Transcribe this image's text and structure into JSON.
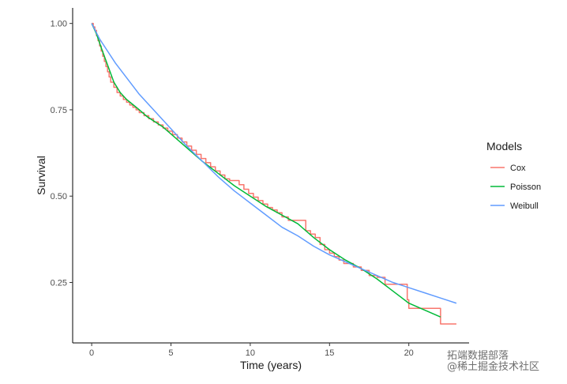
{
  "chart_data": {
    "type": "line",
    "xlabel": "Time (years)",
    "ylabel": "Survival",
    "xlim": [
      -1.2,
      23.8
    ],
    "ylim": [
      0.075,
      1.045
    ],
    "xticks": [
      0,
      5,
      10,
      15,
      20
    ],
    "yticks": [
      0.25,
      0.5,
      0.75,
      1.0
    ],
    "xtick_labels": [
      "0",
      "5",
      "10",
      "15",
      "20"
    ],
    "ytick_labels": [
      "0.25",
      "0.50",
      "0.75",
      "1.00"
    ],
    "grid": false,
    "legend": {
      "title": "Models",
      "position": "right"
    },
    "series": [
      {
        "name": "Cox",
        "color": "#F8766D",
        "step": true,
        "x": [
          0,
          0.1,
          0.2,
          0.3,
          0.4,
          0.5,
          0.6,
          0.7,
          0.8,
          0.9,
          1.0,
          1.1,
          1.2,
          1.4,
          1.6,
          1.8,
          2.0,
          2.2,
          2.4,
          2.6,
          2.8,
          3.0,
          3.3,
          3.6,
          3.9,
          4.2,
          4.5,
          4.8,
          5.1,
          5.4,
          5.7,
          6.0,
          6.3,
          6.6,
          6.9,
          7.2,
          7.5,
          7.8,
          8.1,
          8.4,
          8.7,
          9.0,
          9.3,
          9.6,
          9.9,
          10.2,
          10.5,
          10.8,
          11.1,
          11.4,
          11.7,
          12.0,
          12.4,
          12.8,
          13.2,
          13.5,
          13.8,
          14.1,
          14.4,
          14.7,
          15.0,
          15.3,
          15.6,
          15.9,
          16.5,
          17.0,
          17.5,
          18.0,
          18.5,
          19.5,
          19.9,
          20.0,
          21.2,
          22.0,
          23.0
        ],
        "y": [
          1.0,
          0.99,
          0.98,
          0.965,
          0.95,
          0.935,
          0.92,
          0.905,
          0.89,
          0.875,
          0.86,
          0.845,
          0.83,
          0.815,
          0.8,
          0.79,
          0.78,
          0.772,
          0.764,
          0.757,
          0.75,
          0.742,
          0.733,
          0.724,
          0.715,
          0.706,
          0.697,
          0.688,
          0.678,
          0.668,
          0.657,
          0.645,
          0.633,
          0.621,
          0.609,
          0.597,
          0.585,
          0.573,
          0.561,
          0.55,
          0.545,
          0.545,
          0.533,
          0.52,
          0.508,
          0.497,
          0.487,
          0.477,
          0.467,
          0.46,
          0.452,
          0.44,
          0.43,
          0.43,
          0.43,
          0.4,
          0.39,
          0.38,
          0.36,
          0.345,
          0.335,
          0.325,
          0.315,
          0.305,
          0.295,
          0.285,
          0.27,
          0.265,
          0.245,
          0.245,
          0.2,
          0.175,
          0.175,
          0.13,
          0.13
        ]
      },
      {
        "name": "Poisson",
        "color": "#00BA38",
        "step": false,
        "x": [
          0,
          0.3,
          0.6,
          1.0,
          1.4,
          1.8,
          2.2,
          2.6,
          3.0,
          3.5,
          4.0,
          4.5,
          5.0,
          6.0,
          7.0,
          8.0,
          9.0,
          10.0,
          11.0,
          12.0,
          13.0,
          14.0,
          15.0,
          16.0,
          17.0,
          18.0,
          19.0,
          20.0,
          21.0,
          22.0
        ],
        "y": [
          1.0,
          0.97,
          0.93,
          0.88,
          0.83,
          0.8,
          0.78,
          0.765,
          0.75,
          0.73,
          0.715,
          0.7,
          0.68,
          0.64,
          0.6,
          0.565,
          0.53,
          0.5,
          0.47,
          0.445,
          0.42,
          0.38,
          0.345,
          0.315,
          0.29,
          0.26,
          0.225,
          0.19,
          0.17,
          0.15
        ]
      },
      {
        "name": "Weibull",
        "color": "#619CFF",
        "step": false,
        "x": [
          0,
          0.5,
          1.0,
          1.5,
          2.0,
          2.5,
          3.0,
          4.0,
          5.0,
          6.0,
          7.0,
          8.0,
          9.0,
          10.0,
          11.0,
          12.0,
          13.0,
          14.0,
          15.0,
          16.0,
          17.0,
          18.0,
          19.0,
          20.0,
          21.0,
          22.0,
          23.0
        ],
        "y": [
          1.0,
          0.955,
          0.92,
          0.885,
          0.855,
          0.825,
          0.795,
          0.745,
          0.695,
          0.645,
          0.6,
          0.555,
          0.515,
          0.48,
          0.445,
          0.41,
          0.385,
          0.355,
          0.33,
          0.31,
          0.29,
          0.27,
          0.25,
          0.235,
          0.22,
          0.205,
          0.19
        ]
      }
    ]
  },
  "watermark": {
    "line1": "拓端数据部落",
    "line2": "@稀土掘金技术社区"
  }
}
